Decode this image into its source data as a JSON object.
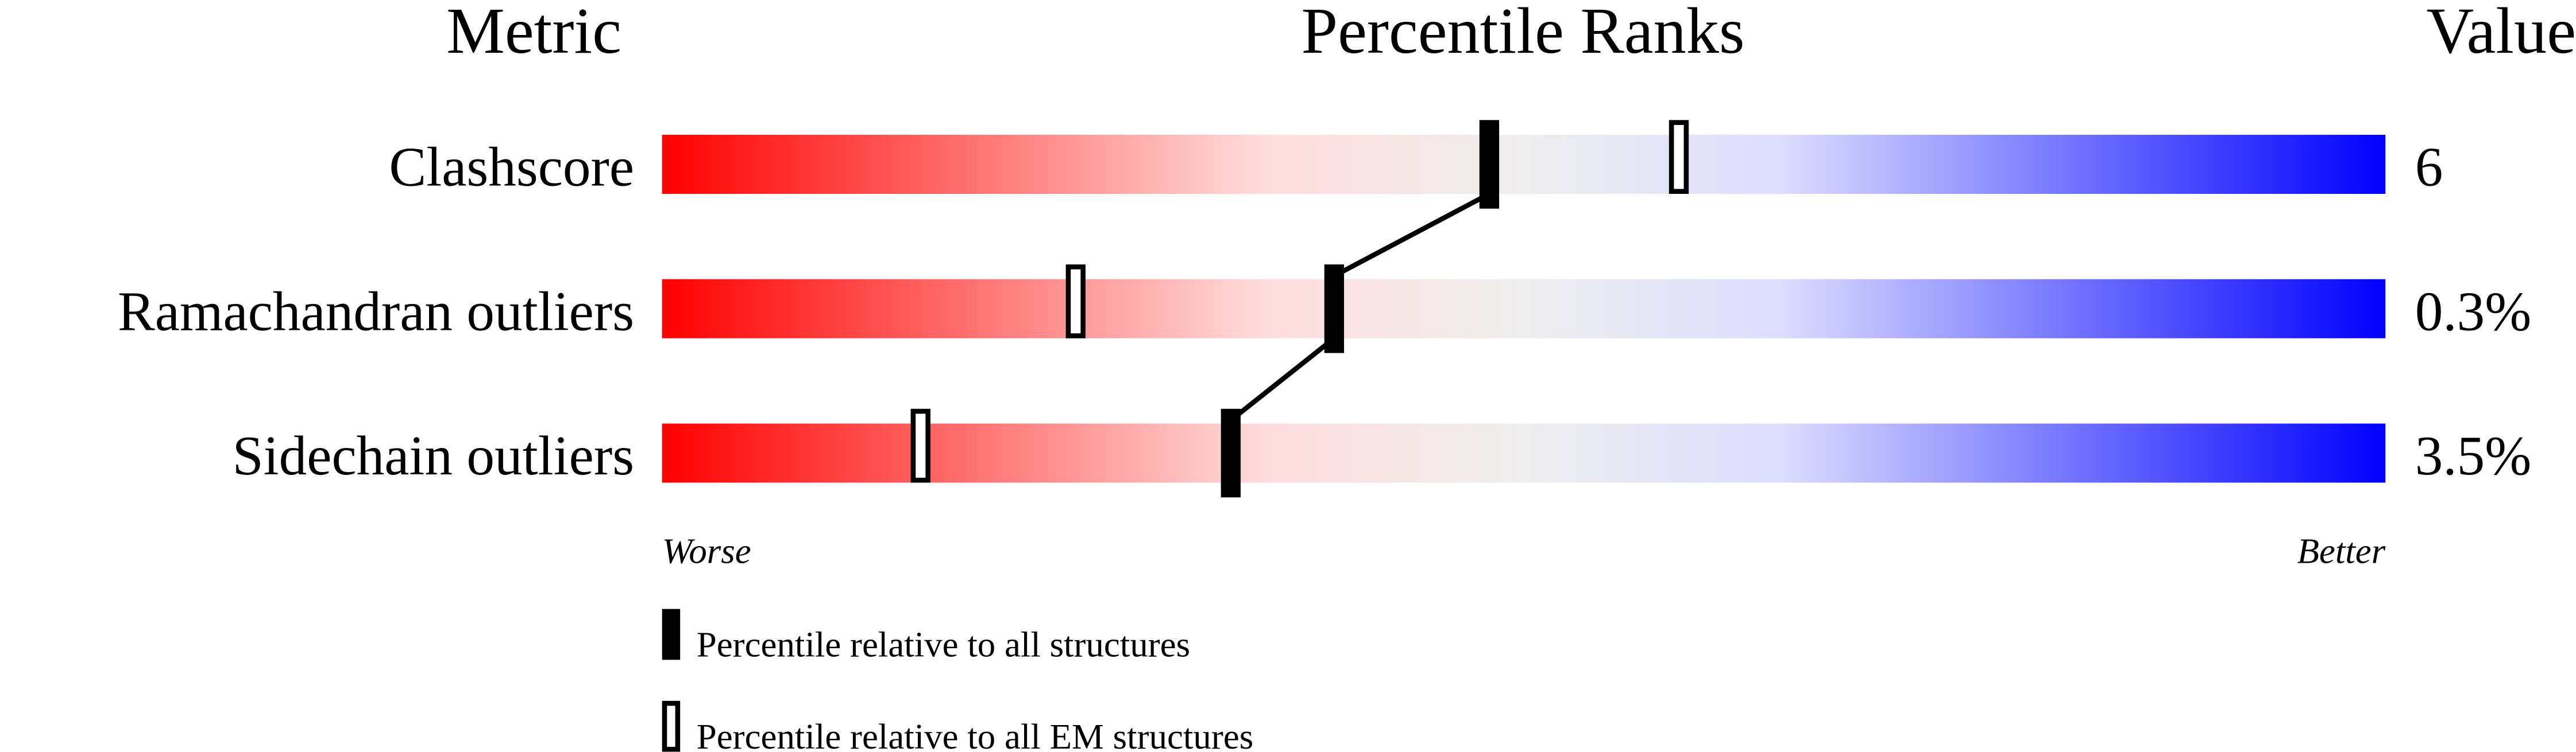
{
  "chart_data": {
    "type": "percentile-bar",
    "headers": {
      "metric": "Metric",
      "ranks": "Percentile Ranks",
      "value": "Value"
    },
    "xlim": [
      0,
      100
    ],
    "rows": [
      {
        "metric": "Clashscore",
        "value": "6",
        "percentile_all": 48,
        "percentile_em": 59
      },
      {
        "metric": "Ramachandran outliers",
        "value": "0.3%",
        "percentile_all": 39,
        "percentile_em": 24
      },
      {
        "metric": "Sidechain outliers",
        "value": "3.5%",
        "percentile_all": 33,
        "percentile_em": 15
      }
    ],
    "axis_labels": {
      "left": "Worse",
      "right": "Better"
    },
    "legend": {
      "all": "Percentile relative to all structures",
      "em": "Percentile relative to all EM structures"
    },
    "gradient_colors": [
      "#ff0000",
      "#ffdddd",
      "#eeeeee",
      "#ddddff",
      "#0000ff"
    ]
  }
}
